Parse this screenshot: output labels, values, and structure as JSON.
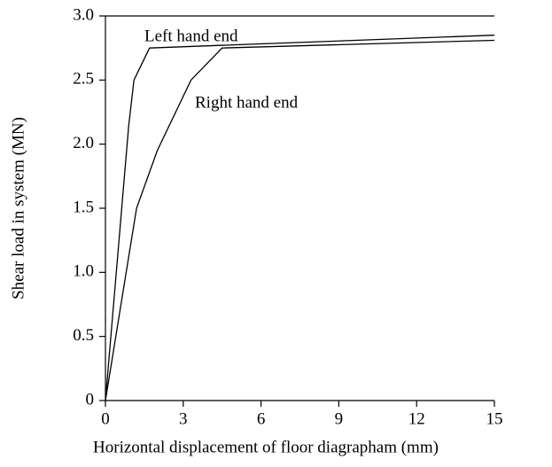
{
  "chart_data": {
    "type": "line",
    "xlabel": "Horizontal displacement of floor diagrapham (mm)",
    "ylabel": "Shear load in system (MN)",
    "annotations": [
      "Left hand end",
      "Right hand end"
    ],
    "xlim": [
      0,
      15
    ],
    "xticks": [
      0,
      3,
      6,
      9,
      12,
      15
    ],
    "ylim": [
      0,
      3
    ],
    "yticks": [
      0,
      0.5,
      {
        "value": 1,
        "label": "1.0"
      },
      1.5,
      {
        "value": 2,
        "label": "2.0"
      },
      2.5,
      {
        "value": 3,
        "label": "3.0"
      }
    ],
    "series": [
      {
        "name": "Left hand end",
        "color": "#000000",
        "x": [
          0,
          0.9,
          1.1,
          1.7,
          15
        ],
        "values": [
          0,
          2.15,
          2.5,
          2.75,
          2.85
        ]
      },
      {
        "name": "Right hand end",
        "color": "#000000",
        "x": [
          0,
          1.2,
          2,
          3.3,
          4.5,
          15
        ],
        "values": [
          0,
          1.5,
          1.95,
          2.5,
          2.75,
          2.81
        ]
      }
    ]
  }
}
